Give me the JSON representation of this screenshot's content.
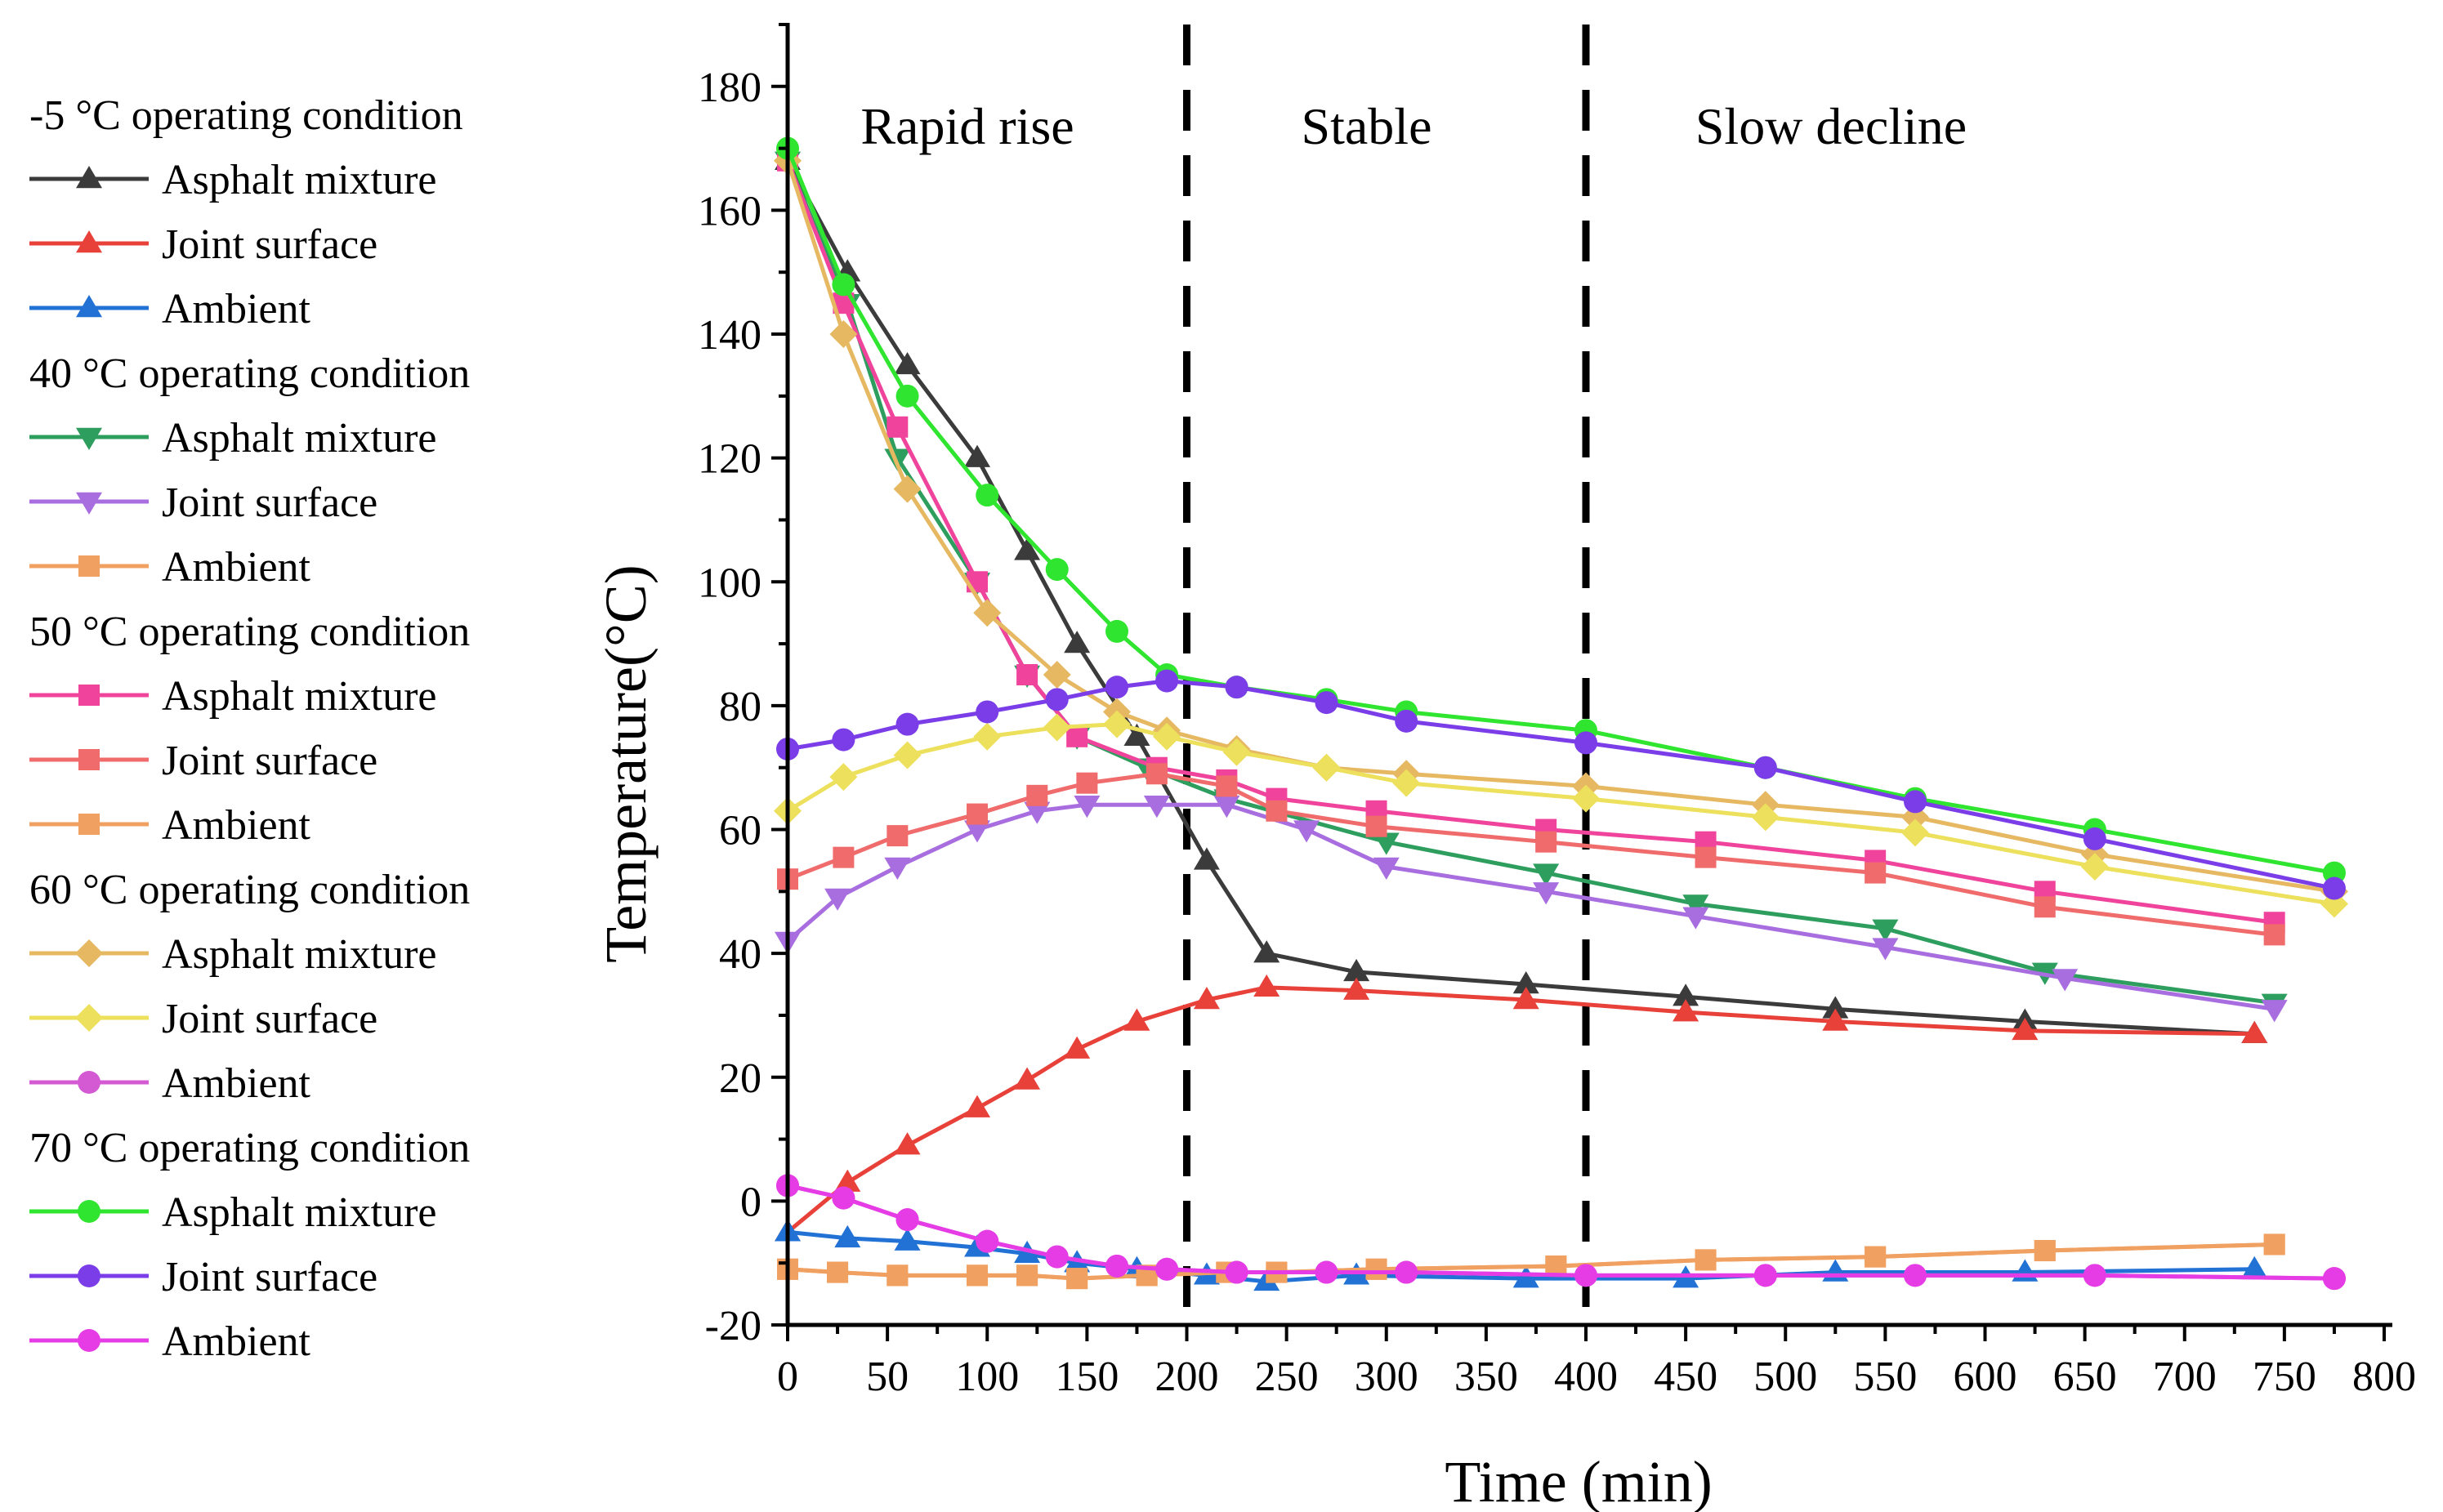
{
  "chart_data": {
    "type": "line",
    "title": "",
    "xlabel": "Time (min)",
    "ylabel": "Temperature(°C)",
    "xlim": [
      0,
      800
    ],
    "ylim": [
      -20,
      190
    ],
    "xticks": [
      "0",
      "50",
      "100",
      "150",
      "200",
      "250",
      "300",
      "350",
      "400",
      "450",
      "500",
      "550",
      "600",
      "650",
      "700",
      "750",
      "800"
    ],
    "yticks": [
      "-20",
      "0",
      "20",
      "40",
      "60",
      "80",
      "100",
      "120",
      "140",
      "160",
      "180"
    ],
    "grid": false,
    "legend_position": "left",
    "phases": [
      {
        "label": "Rapid rise",
        "x_start": 0,
        "x_end": 200
      },
      {
        "label": "Stable",
        "x_start": 200,
        "x_end": 400
      },
      {
        "label": "Slow decline",
        "x_start": 400,
        "x_end": 800
      }
    ],
    "phase_boundaries": [
      200,
      400
    ],
    "groups": [
      {
        "title": "-5 °C operating condition",
        "series": [
          {
            "name": "Asphalt mixture",
            "color": "#3b3b3b",
            "marker": "triangle-up",
            "x": [
              0,
              30,
              60,
              95,
              120,
              145,
              175,
              210,
              240,
              285,
              370,
              450,
              525,
              620,
              735
            ],
            "y": [
              168,
              150,
              135,
              120,
              105,
              90,
              75,
              55,
              40,
              37,
              35,
              33,
              31,
              29,
              27
            ]
          },
          {
            "name": "Joint surface",
            "color": "#e8413a",
            "marker": "triangle-up",
            "x": [
              0,
              30,
              60,
              95,
              120,
              145,
              175,
              210,
              240,
              285,
              370,
              450,
              525,
              620,
              735
            ],
            "y": [
              -5,
              3,
              9,
              15,
              19.5,
              24.5,
              29,
              32.5,
              34.5,
              34,
              32.5,
              30.5,
              29,
              27.5,
              27
            ]
          },
          {
            "name": "Ambient",
            "color": "#2272d6",
            "marker": "triangle-up",
            "x": [
              0,
              30,
              60,
              95,
              120,
              145,
              175,
              210,
              240,
              285,
              370,
              450,
              525,
              620,
              735
            ],
            "y": [
              -5,
              -6,
              -6.5,
              -7.5,
              -8.5,
              -10,
              -11,
              -12,
              -13,
              -12,
              -12.5,
              -12.5,
              -11.5,
              -11.5,
              -11
            ]
          }
        ]
      },
      {
        "title": "40 °C operating condition",
        "series": [
          {
            "name": "Asphalt mixture",
            "color": "#2e9e5e",
            "marker": "triangle-down",
            "x": [
              0,
              30,
              55,
              95,
              120,
              145,
              180,
              220,
              300,
              380,
              455,
              550,
              630,
              745
            ],
            "y": [
              168,
              145,
              120,
              100,
              85,
              75,
              70,
              65,
              58,
              53,
              48,
              44,
              37,
              32
            ]
          },
          {
            "name": "Joint surface",
            "color": "#a86ee0",
            "marker": "triangle-down",
            "x": [
              0,
              25,
              55,
              95,
              125,
              150,
              185,
              220,
              260,
              300,
              380,
              455,
              550,
              640,
              745
            ],
            "y": [
              42,
              49,
              54,
              60,
              63,
              64,
              64,
              64,
              60,
              54,
              50,
              46,
              41,
              36,
              31
            ]
          },
          {
            "name": "Ambient",
            "color": "#f0a060",
            "marker": "square",
            "x": [
              0,
              25,
              55,
              95,
              120,
              145,
              180,
              220,
              245,
              295,
              385,
              460,
              545,
              630,
              745
            ],
            "y": [
              -11,
              -11.5,
              -12,
              -12,
              -12,
              -12.5,
              -12,
              -11.5,
              -11.5,
              -11,
              -10.5,
              -9.5,
              -9,
              -8,
              -7
            ]
          }
        ]
      },
      {
        "title": "50 °C operating condition",
        "series": [
          {
            "name": "Asphalt mixture",
            "color": "#f0449c",
            "marker": "square",
            "x": [
              0,
              28,
              55,
              95,
              120,
              145,
              185,
              220,
              245,
              295,
              380,
              460,
              545,
              630,
              745
            ],
            "y": [
              168,
              145,
              125,
              100,
              85,
              75,
              70,
              68,
              65,
              63,
              60,
              58,
              55,
              50,
              45
            ]
          },
          {
            "name": "Joint surface",
            "color": "#f06b6b",
            "marker": "square",
            "x": [
              0,
              28,
              55,
              95,
              125,
              150,
              185,
              220,
              245,
              295,
              380,
              460,
              545,
              630,
              745
            ],
            "y": [
              52,
              55.5,
              59,
              62.5,
              65.5,
              67.5,
              69,
              67,
              63,
              60.5,
              58,
              55.5,
              53,
              47.5,
              43
            ]
          },
          {
            "name": "Ambient",
            "color": "#f0a060",
            "marker": "square",
            "x": [
              0,
              25,
              55,
              95,
              120,
              145,
              180,
              220,
              245,
              295,
              385,
              460,
              545,
              630,
              745
            ],
            "y": [
              -11,
              -11.5,
              -12,
              -12,
              -12,
              -12.5,
              -12,
              -11.5,
              -11.5,
              -11,
              -10.5,
              -9.5,
              -9,
              -8,
              -7
            ]
          }
        ]
      },
      {
        "title": "60 °C operating condition",
        "series": [
          {
            "name": "Asphalt mixture",
            "color": "#e6b862",
            "marker": "diamond",
            "x": [
              0,
              28,
              60,
              100,
              135,
              165,
              190,
              225,
              270,
              310,
              400,
              490,
              565,
              655,
              775
            ],
            "y": [
              168,
              140,
              115,
              95,
              85,
              79,
              76,
              73,
              70,
              69,
              67,
              64,
              62,
              56,
              50
            ]
          },
          {
            "name": "Joint surface",
            "color": "#ede05c",
            "marker": "diamond",
            "x": [
              0,
              28,
              60,
              100,
              135,
              165,
              190,
              225,
              270,
              310,
              400,
              490,
              565,
              655,
              775
            ],
            "y": [
              63,
              68.5,
              72,
              75,
              76.5,
              77,
              75,
              72.5,
              70,
              67.5,
              65,
              62,
              59.5,
              54,
              48
            ]
          },
          {
            "name": "Ambient",
            "color": "#d35ad3",
            "marker": "circle",
            "x": [
              0,
              28,
              60,
              100,
              135,
              165,
              190,
              225,
              270,
              310,
              400,
              490,
              565,
              655,
              775
            ],
            "y": [
              2.5,
              0.5,
              -3,
              -6.5,
              -9,
              -10.5,
              -11,
              -11.5,
              -11.5,
              -11.5,
              -12,
              -12,
              -12,
              -12,
              -12.5
            ]
          }
        ]
      },
      {
        "title": "70 °C operating condition",
        "series": [
          {
            "name": "Asphalt mixture",
            "color": "#2fe52f",
            "marker": "circle",
            "x": [
              0,
              28,
              60,
              100,
              135,
              165,
              190,
              225,
              270,
              310,
              400,
              490,
              565,
              655,
              775
            ],
            "y": [
              170,
              148,
              130,
              114,
              102,
              92,
              85,
              83,
              81,
              79,
              76,
              70,
              65,
              60,
              53
            ]
          },
          {
            "name": "Joint surface",
            "color": "#7a3de8",
            "marker": "circle",
            "x": [
              0,
              28,
              60,
              100,
              135,
              165,
              190,
              225,
              270,
              310,
              400,
              490,
              565,
              655,
              775
            ],
            "y": [
              73,
              74.5,
              77,
              79,
              81,
              83,
              84,
              83,
              80.5,
              77.5,
              74,
              70,
              64.5,
              58.5,
              50.5
            ]
          },
          {
            "name": "Ambient",
            "color": "#e63ce6",
            "marker": "circle",
            "x": [
              0,
              28,
              60,
              100,
              135,
              165,
              190,
              225,
              270,
              310,
              400,
              490,
              565,
              655,
              775
            ],
            "y": [
              2.5,
              0.5,
              -3,
              -6.5,
              -9,
              -10.5,
              -11,
              -11.5,
              -11.5,
              -11.5,
              -12,
              -12,
              -12,
              -12,
              -12.5
            ]
          }
        ]
      }
    ]
  }
}
